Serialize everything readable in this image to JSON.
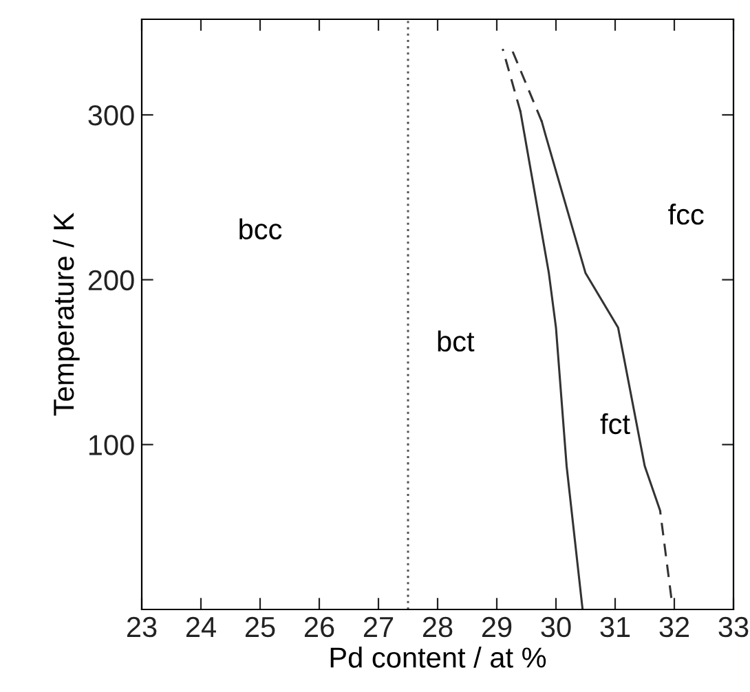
{
  "chart_data": {
    "type": "line",
    "xlabel": "Pd content / at %",
    "ylabel": "Temperature / K",
    "xlim": [
      23,
      33
    ],
    "ylim": [
      0,
      358
    ],
    "xticks": [
      23,
      24,
      25,
      26,
      27,
      28,
      29,
      30,
      31,
      32,
      33
    ],
    "yticks": [
      100,
      200,
      300
    ],
    "grid": false,
    "legend": false,
    "marker": "none",
    "series": [
      {
        "color": "#555555",
        "line_style": "dotted",
        "x": [
          27.5,
          27.5
        ],
        "values": [
          0,
          358
        ]
      },
      {
        "color": "#333333",
        "line_style": "solid",
        "x": [
          30.45,
          30.18,
          30.0,
          29.88,
          29.4
        ],
        "values": [
          0,
          87,
          171,
          204,
          302
        ]
      },
      {
        "color": "#333333",
        "line_style": "dashed",
        "x": [
          29.4,
          29.1
        ],
        "values": [
          302,
          340
        ]
      },
      {
        "color": "#333333",
        "line_style": "dashed",
        "x": [
          31.95,
          31.76
        ],
        "values": [
          7,
          60
        ]
      },
      {
        "color": "#333333",
        "line_style": "solid",
        "x": [
          31.76,
          31.5,
          31.05,
          30.5,
          29.83,
          29.76
        ],
        "values": [
          60,
          87,
          171,
          204,
          287,
          296
        ]
      },
      {
        "color": "#333333",
        "line_style": "dashed",
        "x": [
          29.76,
          29.25
        ],
        "values": [
          296,
          340
        ]
      }
    ],
    "annotations": [
      "bcc",
      "bct",
      "fct",
      "fcc"
    ]
  }
}
